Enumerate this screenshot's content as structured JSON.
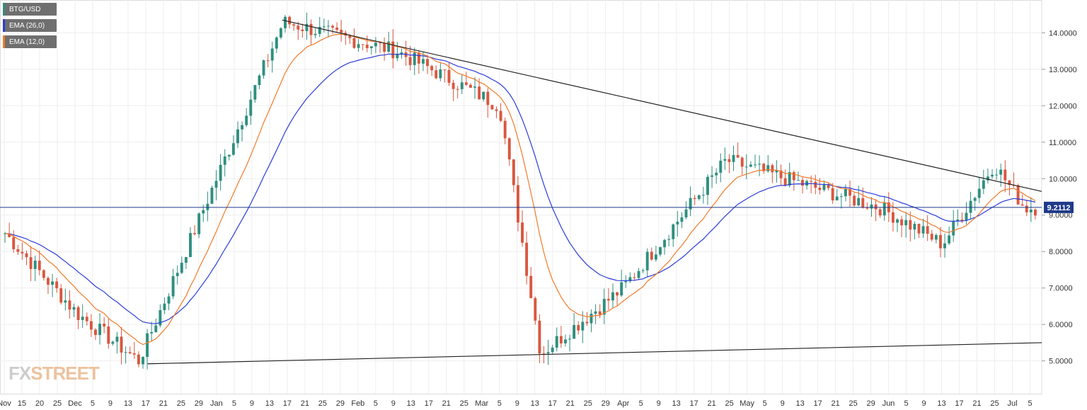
{
  "legend": [
    {
      "label": "BTG/USD",
      "color": "#2f8f7f"
    },
    {
      "label": "EMA (26,0)",
      "color": "#2b3cd9"
    },
    {
      "label": "EMA (12,0)",
      "color": "#f07a2a"
    }
  ],
  "price_label": "9.2112",
  "logo": {
    "fx": "FX",
    "street": "STREET"
  },
  "colors": {
    "up": "#2f8f7f",
    "down": "#d9573f",
    "ema26": "#2b3cd9",
    "ema12": "#f07a2a",
    "current_line": "#1f3a8a",
    "trend": "#222222"
  },
  "chart_data": {
    "type": "candlestick",
    "symbol": "BTG/USD",
    "ylim": [
      4.1,
      14.9
    ],
    "y_ticks": [
      "5.0000",
      "6.0000",
      "7.0000",
      "8.0000",
      "9.0000",
      "10.0000",
      "11.0000",
      "12.0000",
      "13.0000",
      "14.0000"
    ],
    "x_ticks": [
      "Nov",
      "15",
      "20",
      "25",
      "Dec",
      "5",
      "9",
      "13",
      "17",
      "21",
      "25",
      "29",
      "Jan",
      "5",
      "9",
      "13",
      "17",
      "21",
      "25",
      "29",
      "Feb",
      "5",
      "9",
      "13",
      "17",
      "21",
      "25",
      "Mar",
      "5",
      "9",
      "13",
      "17",
      "21",
      "25",
      "29",
      "Apr",
      "5",
      "9",
      "13",
      "17",
      "21",
      "25",
      "May",
      "5",
      "9",
      "13",
      "17",
      "21",
      "25",
      "29",
      "Jun",
      "5",
      "9",
      "13",
      "17",
      "21",
      "25",
      "Jul",
      "5"
    ],
    "current_price": 9.2112,
    "ema26_label": "EMA (26,0)",
    "ema12_label": "EMA (12,0)",
    "key_levels": [
      {
        "x": 0.0,
        "close": 8.5
      },
      {
        "x": 0.07,
        "close": 6.3
      },
      {
        "x": 0.13,
        "close": 5.0
      },
      {
        "x": 0.27,
        "close": 14.3
      },
      {
        "x": 0.38,
        "close": 13.5
      },
      {
        "x": 0.48,
        "close": 12.0
      },
      {
        "x": 0.52,
        "close": 5.2
      },
      {
        "x": 0.6,
        "close": 7.0
      },
      {
        "x": 0.7,
        "close": 10.5
      },
      {
        "x": 0.85,
        "close": 9.2
      },
      {
        "x": 0.91,
        "close": 8.2
      },
      {
        "x": 0.96,
        "close": 10.4
      },
      {
        "x": 0.99,
        "close": 9.2
      }
    ]
  }
}
